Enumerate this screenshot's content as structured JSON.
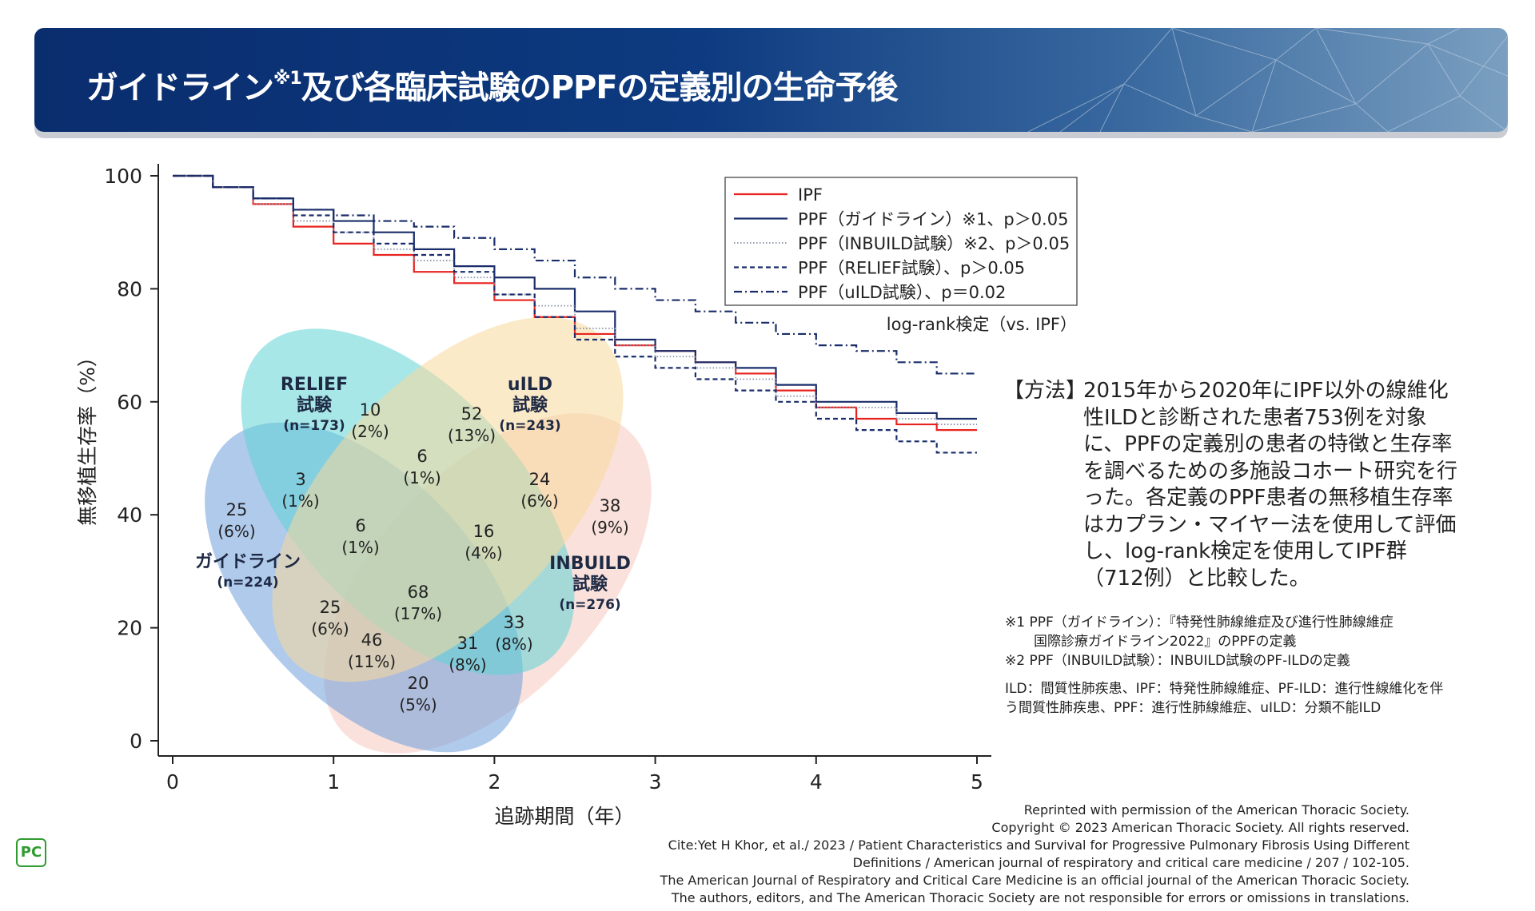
{
  "header": {
    "title_pre": "ガイドライン",
    "title_sup": "※1",
    "title_post": "及び各臨床試験のPPFの定義別の生命予後"
  },
  "chart_data": {
    "type": "line",
    "title": "",
    "xlabel": "追跡期間（年）",
    "ylabel": "無移植生存率（%）",
    "xlim": [
      0,
      5
    ],
    "ylim": [
      0,
      100
    ],
    "xticks": [
      "0",
      "1",
      "2",
      "3",
      "4",
      "5"
    ],
    "yticks": [
      "0",
      "20",
      "40",
      "60",
      "80",
      "100"
    ],
    "grid": false,
    "legend_position": "top-right",
    "series": [
      {
        "name": "IPF",
        "label": "IPF",
        "color": "#e8231f",
        "style": "solid",
        "x": [
          0,
          0.25,
          0.5,
          0.75,
          1.0,
          1.25,
          1.5,
          1.75,
          2.0,
          2.25,
          2.5,
          2.75,
          3.0,
          3.25,
          3.5,
          3.75,
          4.0,
          4.25,
          4.5,
          4.75,
          5.0
        ],
        "y": [
          100,
          98,
          95,
          91,
          88,
          86,
          83,
          81,
          78,
          75,
          72,
          70,
          69,
          67,
          65,
          62,
          59,
          57,
          56,
          55,
          55
        ]
      },
      {
        "name": "PPF-guideline",
        "label": "PPF（ガイドライン）※1、p＞0.05",
        "color": "#1a2d6b",
        "style": "solid",
        "x": [
          0,
          0.25,
          0.5,
          0.75,
          1.0,
          1.25,
          1.5,
          1.75,
          2.0,
          2.25,
          2.5,
          2.75,
          3.0,
          3.25,
          3.5,
          3.75,
          4.0,
          4.25,
          4.5,
          4.75,
          5.0
        ],
        "y": [
          100,
          98,
          96,
          94,
          92,
          90,
          87,
          84,
          82,
          80,
          76,
          71,
          69,
          67,
          66,
          63,
          60,
          60,
          58,
          57,
          57
        ]
      },
      {
        "name": "PPF-INBUILD",
        "label": "PPF（INBUILD試験）※2、p＞0.05",
        "color": "#8890a8",
        "style": "dotted",
        "x": [
          0,
          0.25,
          0.5,
          0.75,
          1.0,
          1.25,
          1.5,
          1.75,
          2.0,
          2.25,
          2.5,
          2.75,
          3.0,
          3.25,
          3.5,
          3.75,
          4.0,
          4.25,
          4.5,
          4.75,
          5.0
        ],
        "y": [
          100,
          98,
          95,
          92,
          90,
          87,
          85,
          82,
          79,
          77,
          73,
          70,
          68,
          66,
          64,
          61,
          59,
          59,
          57,
          56,
          56
        ]
      },
      {
        "name": "PPF-RELIEF",
        "label": "PPF（RELIEF試験）、p＞0.05",
        "color": "#1a2d6b",
        "style": "dashed",
        "x": [
          0,
          0.25,
          0.5,
          0.75,
          1.0,
          1.25,
          1.5,
          1.75,
          2.0,
          2.25,
          2.5,
          2.75,
          3.0,
          3.25,
          3.5,
          3.75,
          4.0,
          4.25,
          4.5,
          4.75,
          5.0
        ],
        "y": [
          100,
          98,
          96,
          93,
          90,
          88,
          86,
          83,
          79,
          75,
          71,
          68,
          66,
          64,
          62,
          60,
          57,
          55,
          53,
          51,
          51
        ]
      },
      {
        "name": "PPF-uILD",
        "label": "PPF（uILD試験）、p＝0.02",
        "color": "#1a2d6b",
        "style": "dashdot",
        "x": [
          0,
          0.25,
          0.5,
          0.75,
          1.0,
          1.25,
          1.5,
          1.75,
          2.0,
          2.25,
          2.5,
          2.75,
          3.0,
          3.25,
          3.5,
          3.75,
          4.0,
          4.25,
          4.5,
          4.75,
          5.0
        ],
        "y": [
          100,
          98,
          96,
          94,
          93,
          92,
          91,
          89,
          87,
          85,
          82,
          80,
          78,
          76,
          74,
          72,
          70,
          69,
          67,
          65,
          65
        ]
      }
    ],
    "legend_note": "log-rank検定（vs. IPF）",
    "venn": {
      "sets": [
        {
          "name": "relief",
          "label": "RELIEF\n試験",
          "n": "(n=173)",
          "color": "#5fd3d6"
        },
        {
          "name": "uild",
          "label": "uILD\n試験",
          "n": "(n=243)",
          "color": "#f8d99a"
        },
        {
          "name": "inbuild",
          "label": "INBUILD\n試験",
          "n": "(n=276)",
          "color": "#f6c9c0"
        },
        {
          "name": "guideline",
          "label": "ガイドライン",
          "n": "(n=224)",
          "color": "#6f9fdc"
        }
      ],
      "regions": [
        {
          "name": "relief-only",
          "count": "10",
          "pct": "(2%)"
        },
        {
          "name": "uild-only",
          "count": "52",
          "pct": "(13%)"
        },
        {
          "name": "inbuild-only",
          "count": "38",
          "pct": "(9%)"
        },
        {
          "name": "guideline-only",
          "count": "25",
          "pct": "(6%)"
        },
        {
          "name": "relief-uild",
          "count": "6",
          "pct": "(1%)"
        },
        {
          "name": "relief-guideline",
          "count": "3",
          "pct": "(1%)"
        },
        {
          "name": "uild-inbuild",
          "count": "24",
          "pct": "(6%)"
        },
        {
          "name": "relief-uild-guideline",
          "count": "6",
          "pct": "(1%)"
        },
        {
          "name": "relief-uild-inbuild",
          "count": "16",
          "pct": "(4%)"
        },
        {
          "name": "all-four",
          "count": "68",
          "pct": "(17%)"
        },
        {
          "name": "relief-inbuild-guideline",
          "count": "25",
          "pct": "(6%)"
        },
        {
          "name": "uild-inbuild-guideline",
          "count": "31",
          "pct": "(8%)"
        },
        {
          "name": "relief-inbuild",
          "count": "33",
          "pct": "(8%)"
        },
        {
          "name": "inbuild-guideline",
          "count": "46",
          "pct": "(11%)"
        },
        {
          "name": "inbuild-guideline-lower",
          "count": "20",
          "pct": "(5%)"
        }
      ]
    }
  },
  "method": {
    "label": "【方法】",
    "text": "2015年から2020年にIPF以外の線維化性ILDと診断された患者753例を対象に、PPFの定義別の患者の特徴と生存率を調べるための多施設コホート研究を行った。各定義のPPF患者の無移植生存率はカプラン・マイヤー法を使用して評価し、log-rank検定を使用してIPF群（712例）と比較した。"
  },
  "notes": {
    "n1_line1": "※1 PPF（ガイドライン）：『特発性肺線維症及び進行性肺線維症",
    "n1_line2": "国際診療ガイドライン2022』のPPFの定義",
    "n2": "※2 PPF（INBUILD試験）：INBUILD試験のPF-ILDの定義",
    "abbr": "ILD：間質性肺疾患、IPF：特発性肺線維症、PF-ILD：進行性線維化を伴う間質性肺疾患、PPF：進行性肺線維症、uILD：分類不能ILD"
  },
  "credits": {
    "line1": "Reprinted with permission of the American Thoracic Society.",
    "line2": "Copyright © 2023 American Thoracic Society. All rights reserved.",
    "line3": "Cite:Yet H Khor, et al./ 2023 / Patient Characteristics and Survival for Progressive Pulmonary Fibrosis Using Different",
    "line4": "Definitions / American journal of respiratory and critical care medicine / 207 / 102-105.",
    "line5": "The American Journal of Respiratory and Critical Care Medicine is an official journal of the American Thoracic Society.",
    "line6": "The authors, editors, and The American Thoracic Society are not responsible for errors or omissions in translations."
  },
  "logo": {
    "text": "PC",
    "color": "#2f9c2f"
  }
}
